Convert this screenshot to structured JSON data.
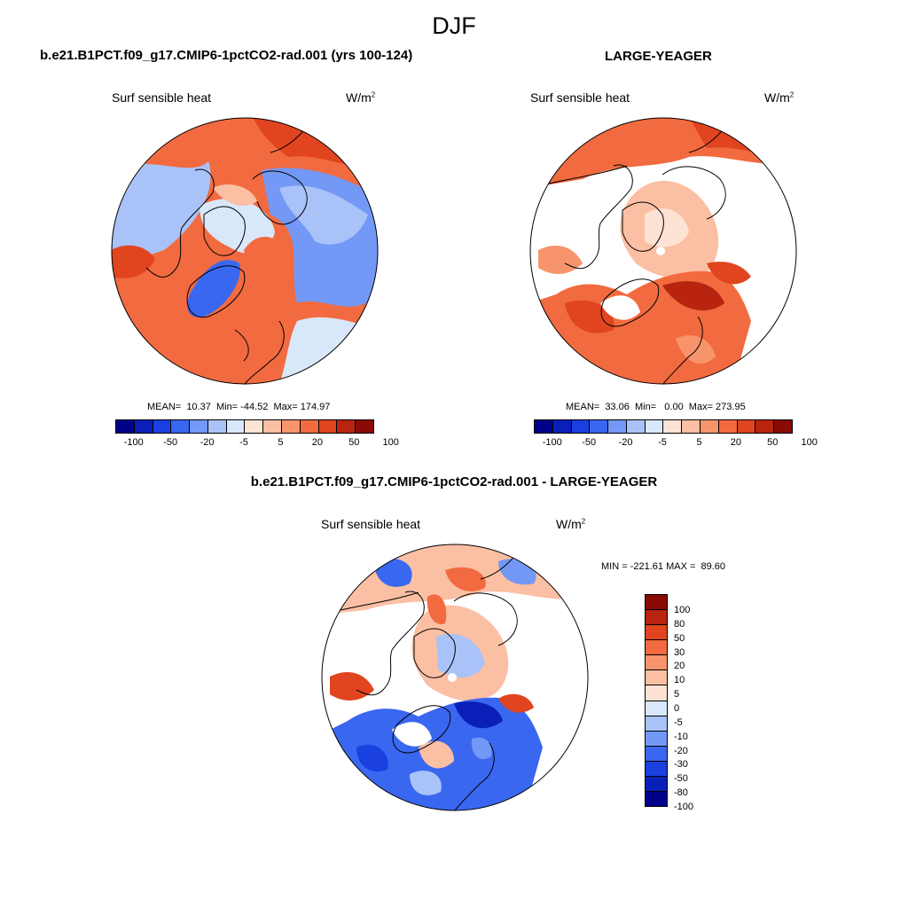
{
  "title": "DJF",
  "panels": {
    "left": {
      "title": "b.e21.B1PCT.f09_g17.CMIP6-1pctCO2-rad.001 (yrs 100-124)",
      "variable": "Surf sensible heat",
      "units_base": "W/m",
      "units_exp": "2",
      "stats": "MEAN=  10.37  Min= -44.52  Max= 174.97"
    },
    "right": {
      "title": "LARGE-YEAGER",
      "variable": "Surf sensible heat",
      "units_base": "W/m",
      "units_exp": "2",
      "stats": "MEAN=  33.06  Min=   0.00  Max= 273.95"
    },
    "diff": {
      "title": "b.e21.B1PCT.f09_g17.CMIP6-1pctCO2-rad.001 - LARGE-YEAGER",
      "variable": "Surf sensible heat",
      "units_base": "W/m",
      "units_exp": "2",
      "stats": "MIN = -221.61 MAX =  89.60"
    }
  },
  "colorbar_main": {
    "colors": [
      "#00008a",
      "#0a1fb8",
      "#1a40e0",
      "#3a67f0",
      "#7398f5",
      "#a9c3f8",
      "#d9e7fb",
      "#fde3d4",
      "#fbbfa3",
      "#f7946c",
      "#f26a3f",
      "#e04520",
      "#b8240f",
      "#8a0a05"
    ],
    "labels": [
      "-100",
      "-50",
      "-20",
      "-5",
      "5",
      "20",
      "50",
      "100"
    ]
  },
  "colorbar_diff": {
    "colors": [
      "#8a0a05",
      "#b8240f",
      "#e04520",
      "#f26a3f",
      "#f7946c",
      "#fbbfa3",
      "#fde3d4",
      "#d9e7fb",
      "#a9c3f8",
      "#7398f5",
      "#3a67f0",
      "#1a40e0",
      "#0a1fb8",
      "#00008a"
    ],
    "labels": [
      "100",
      "80",
      "50",
      "30",
      "20",
      "10",
      "5",
      "0",
      "-5",
      "-10",
      "-20",
      "-30",
      "-50",
      "-80",
      "-100"
    ]
  }
}
